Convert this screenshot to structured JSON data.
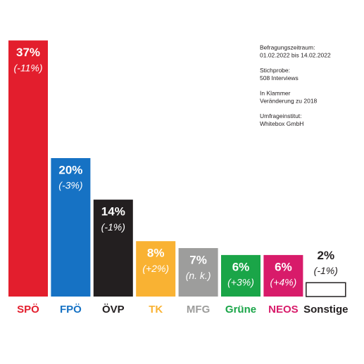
{
  "chart_data": {
    "type": "bar",
    "categories": [
      "SPÖ",
      "FPÖ",
      "ÖVP",
      "TK",
      "MFG",
      "Grüne",
      "NEOS",
      "Sonstige"
    ],
    "values": [
      37,
      20,
      14,
      8,
      7,
      6,
      6,
      2
    ],
    "value_labels": [
      "37%",
      "20%",
      "14%",
      "8%",
      "7%",
      "6%",
      "6%",
      "2%"
    ],
    "change_labels": [
      "(-11%)",
      "(-3%)",
      "(-1%)",
      "(+2%)",
      "(n. k.)",
      "(+3%)",
      "(+4%)",
      "(-1%)"
    ],
    "colors": [
      "#e31e2d",
      "#1672c4",
      "#231f20",
      "#f9b233",
      "#9d9d9c",
      "#1aa548",
      "#d81b6a",
      "#ffffff"
    ],
    "label_colors": [
      "#e31e2d",
      "#1672c4",
      "#231f20",
      "#f9b233",
      "#9d9d9c",
      "#1aa548",
      "#d81b6a",
      "#231f20"
    ],
    "annotations": [
      [
        "Befragungszeitraum:",
        "01.02.2022 bis 14.02.2022"
      ],
      [
        "Stichprobe:",
        "508 Interviews"
      ],
      [
        "In Klammer",
        "Veränderung zu 2018"
      ],
      [
        "Umfrageinstitut:",
        "Whitebox GmbH"
      ]
    ]
  }
}
